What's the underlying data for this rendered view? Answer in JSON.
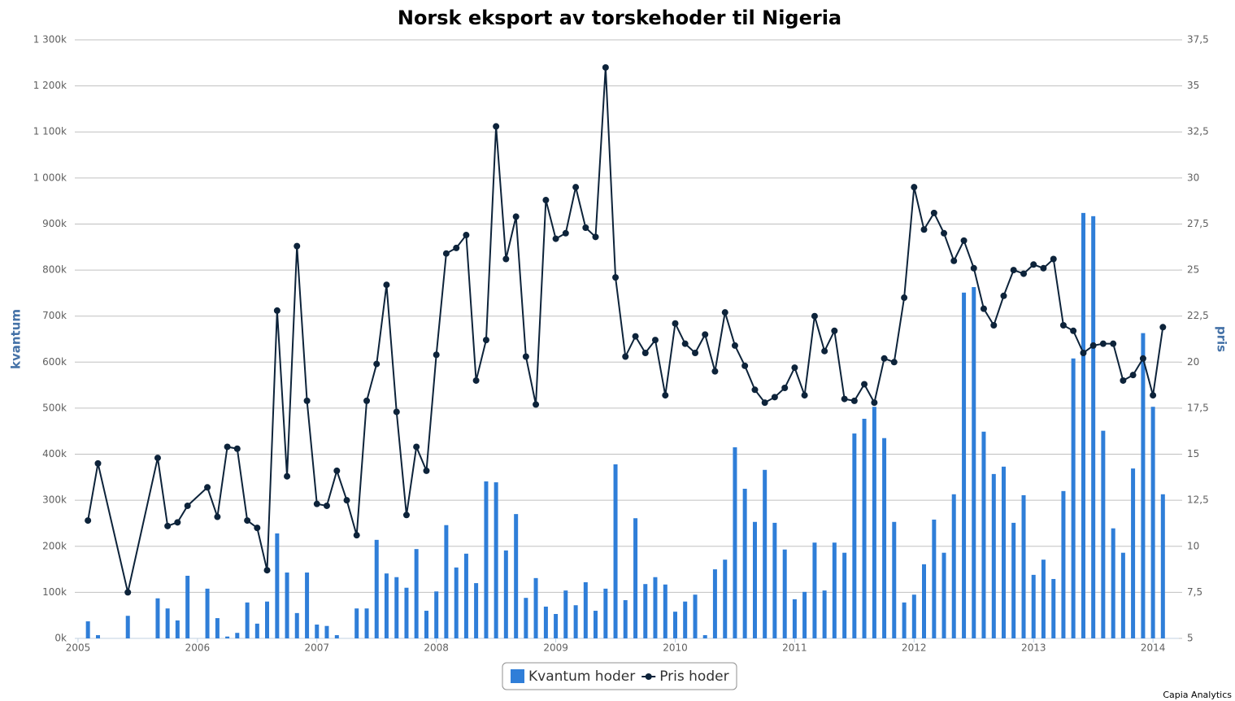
{
  "chart_data": {
    "type": "combo",
    "title": "Norsk eksport av torskehoder til Nigeria",
    "ylabel": "kvantum",
    "y2label": "pris",
    "credit": "Capia Analytics",
    "xlim": [
      2004.973,
      2014.217
    ],
    "xticks": [
      2005,
      2006,
      2007,
      2008,
      2009,
      2010,
      2011,
      2012,
      2013,
      2014
    ],
    "ylim": [
      0,
      1300000
    ],
    "yticks": [
      {
        "value": 0,
        "label": "0k"
      },
      {
        "value": 100000,
        "label": "100k"
      },
      {
        "value": 200000,
        "label": "200k"
      },
      {
        "value": 300000,
        "label": "300k"
      },
      {
        "value": 400000,
        "label": "400k"
      },
      {
        "value": 500000,
        "label": "500k"
      },
      {
        "value": 600000,
        "label": "600k"
      },
      {
        "value": 700000,
        "label": "700k"
      },
      {
        "value": 800000,
        "label": "800k"
      },
      {
        "value": 900000,
        "label": "900k"
      },
      {
        "value": 1000000,
        "label": "1 000k"
      },
      {
        "value": 1100000,
        "label": "1 100k"
      },
      {
        "value": 1200000,
        "label": "1 200k"
      },
      {
        "value": 1300000,
        "label": "1 300k"
      }
    ],
    "y2lim": [
      5,
      37.5
    ],
    "y2ticks": [
      5,
      {
        "value": 7.5,
        "label": "7,5"
      },
      10,
      {
        "value": 12.5,
        "label": "12,5"
      },
      15,
      {
        "value": 17.5,
        "label": "17,5"
      },
      20,
      {
        "value": 22.5,
        "label": "22,5"
      },
      25,
      {
        "value": 27.5,
        "label": "27,5"
      },
      30,
      {
        "value": 32.5,
        "label": "32,5"
      },
      35,
      {
        "value": 37.5,
        "label": "37,5"
      }
    ],
    "grid": true,
    "legend": "bottom",
    "x": [
      2005.083,
      2005.167,
      2005.417,
      2005.667,
      2005.75,
      2005.833,
      2005.917,
      2006.083,
      2006.167,
      2006.25,
      2006.333,
      2006.417,
      2006.5,
      2006.583,
      2006.667,
      2006.75,
      2006.833,
      2006.917,
      2007,
      2007.083,
      2007.167,
      2007.25,
      2007.333,
      2007.417,
      2007.5,
      2007.583,
      2007.667,
      2007.75,
      2007.833,
      2007.917,
      2008,
      2008.083,
      2008.167,
      2008.25,
      2008.333,
      2008.417,
      2008.5,
      2008.583,
      2008.667,
      2008.75,
      2008.833,
      2008.917,
      2009,
      2009.083,
      2009.167,
      2009.25,
      2009.333,
      2009.417,
      2009.5,
      2009.583,
      2009.667,
      2009.75,
      2009.833,
      2009.917,
      2010,
      2010.083,
      2010.167,
      2010.25,
      2010.333,
      2010.417,
      2010.5,
      2010.583,
      2010.667,
      2010.75,
      2010.833,
      2010.917,
      2011,
      2011.083,
      2011.167,
      2011.25,
      2011.333,
      2011.417,
      2011.5,
      2011.583,
      2011.667,
      2011.75,
      2011.833,
      2011.917,
      2012,
      2012.083,
      2012.167,
      2012.25,
      2012.333,
      2012.417,
      2012.5,
      2012.583,
      2012.667,
      2012.75,
      2012.833,
      2012.917,
      2013,
      2013.083,
      2013.167,
      2013.25,
      2013.333,
      2013.417,
      2013.5,
      2013.583,
      2013.667,
      2013.75,
      2013.833,
      2013.917,
      2014,
      2014.083
    ],
    "series": [
      {
        "name": "Kvantum hoder",
        "type": "bar",
        "color": "#2f7ed8",
        "values": [
          37000,
          7000,
          49000,
          87000,
          65000,
          39000,
          136000,
          108000,
          44000,
          4000,
          12000,
          78000,
          32000,
          80000,
          228000,
          143000,
          55000,
          143000,
          30000,
          27000,
          7000,
          0,
          65000,
          65000,
          214000,
          141000,
          133000,
          110000,
          194000,
          60000,
          102000,
          246000,
          154000,
          184000,
          120000,
          341000,
          339000,
          191000,
          270000,
          88000,
          131000,
          69000,
          53000,
          104000,
          72000,
          122000,
          60000,
          108000,
          378000,
          83000,
          261000,
          118000,
          133000,
          117000,
          58000,
          80000,
          95000,
          7000,
          150000,
          171000,
          415000,
          325000,
          253000,
          366000,
          251000,
          193000,
          85000,
          101000,
          208000,
          104000,
          208000,
          186000,
          445000,
          477000,
          503000,
          435000,
          253000,
          78000,
          95000,
          161000,
          258000,
          186000,
          313000,
          751000,
          763000,
          449000,
          357000,
          373000,
          251000,
          311000,
          138000,
          171000,
          129000,
          320000,
          608000,
          924000,
          917000,
          451000,
          239000,
          186000,
          369000,
          663000,
          503000,
          313000
        ]
      },
      {
        "name": "Pris hoder",
        "type": "line",
        "axis": "y2",
        "color": "#0d233a",
        "values": [
          11.4,
          14.5,
          7.5,
          14.8,
          11.1,
          11.3,
          12.2,
          13.2,
          11.6,
          15.4,
          15.3,
          11.4,
          11.0,
          8.7,
          22.8,
          13.8,
          26.3,
          17.9,
          12.3,
          12.2,
          14.1,
          12.5,
          10.6,
          17.9,
          19.9,
          24.2,
          17.3,
          11.7,
          15.4,
          14.1,
          20.4,
          25.9,
          26.2,
          26.9,
          19.0,
          21.2,
          32.8,
          25.6,
          27.9,
          20.3,
          17.7,
          28.8,
          26.7,
          27.0,
          29.5,
          27.3,
          26.8,
          36.0,
          24.6,
          20.3,
          21.4,
          20.5,
          21.2,
          18.2,
          22.1,
          21.0,
          20.5,
          21.5,
          19.5,
          22.7,
          20.9,
          19.8,
          18.5,
          17.8,
          18.1,
          18.6,
          19.7,
          18.2,
          22.5,
          20.6,
          21.7,
          18.0,
          17.9,
          18.8,
          17.8,
          20.2,
          20.0,
          23.5,
          29.5,
          27.2,
          28.1,
          27.0,
          25.5,
          26.6,
          25.1,
          22.9,
          22.0,
          23.6,
          25.0,
          24.8,
          25.3,
          25.1,
          25.6,
          22.0,
          21.7,
          20.5,
          20.9,
          21.0,
          21.0,
          19.0,
          19.3,
          20.2,
          18.2,
          21.9
        ]
      }
    ]
  }
}
